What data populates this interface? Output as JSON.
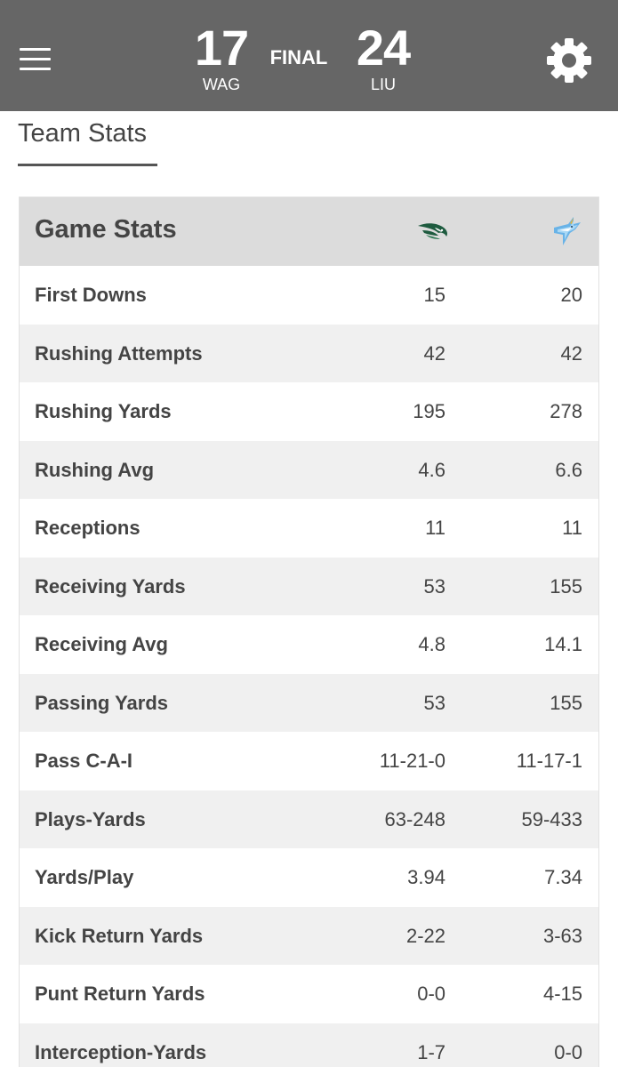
{
  "scoreboard": {
    "home_score": "17",
    "home_abbr": "WAG",
    "status": "FINAL",
    "away_score": "24",
    "away_abbr": "LIU"
  },
  "tab": {
    "title": "Team Stats"
  },
  "game_stats": {
    "title": "Game Stats",
    "rows": [
      {
        "label": "First Downs",
        "home": "15",
        "away": "20"
      },
      {
        "label": "Rushing Attempts",
        "home": "42",
        "away": "42"
      },
      {
        "label": "Rushing Yards",
        "home": "195",
        "away": "278"
      },
      {
        "label": "Rushing Avg",
        "home": "4.6",
        "away": "6.6"
      },
      {
        "label": "Receptions",
        "home": "11",
        "away": "11"
      },
      {
        "label": "Receiving Yards",
        "home": "53",
        "away": "155"
      },
      {
        "label": "Receiving Avg",
        "home": "4.8",
        "away": "14.1"
      },
      {
        "label": "Passing Yards",
        "home": "53",
        "away": "155"
      },
      {
        "label": "Pass C-A-I",
        "home": "11-21-0",
        "away": "11-17-1"
      },
      {
        "label": "Plays-Yards",
        "home": "63-248",
        "away": "59-433"
      },
      {
        "label": "Yards/Play",
        "home": "3.94",
        "away": "7.34"
      },
      {
        "label": "Kick Return Yards",
        "home": "2-22",
        "away": "3-63"
      },
      {
        "label": "Punt Return Yards",
        "home": "0-0",
        "away": "4-15"
      },
      {
        "label": "Interception-Yards",
        "home": "1-7",
        "away": "0-0"
      }
    ]
  },
  "icons": {
    "menu": "hamburger-menu-icon",
    "settings": "gear-icon",
    "home_logo": "wagner-seahawk-logo-icon",
    "away_logo": "liu-shark-logo-icon"
  },
  "colors": {
    "topbar": "#666666",
    "header_row": "#dcdcdc",
    "alt_row": "#f0f0f0",
    "wagner_green": "#1e5b3f",
    "liu_blue": "#69b3e7"
  }
}
